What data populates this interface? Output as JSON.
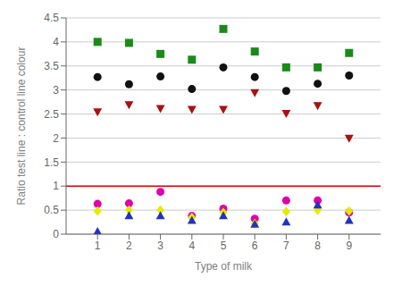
{
  "chart_data": {
    "type": "scatter",
    "xlabel": "Type of milk",
    "ylabel": "Ratio test line : control line colour",
    "x": [
      1,
      2,
      3,
      4,
      5,
      6,
      7,
      8,
      9
    ],
    "series": [
      {
        "color": "#1a8a1a",
        "marker": "square",
        "values": [
          4.0,
          3.98,
          3.75,
          3.63,
          4.27,
          3.8,
          3.47,
          3.47,
          3.77
        ]
      },
      {
        "color": "#111111",
        "marker": "circle",
        "values": [
          3.27,
          3.12,
          3.28,
          3.02,
          3.47,
          3.27,
          2.98,
          3.13,
          3.3
        ]
      },
      {
        "color": "#aa1111",
        "marker": "triangle-down",
        "values": [
          2.55,
          2.7,
          2.62,
          2.6,
          2.6,
          2.95,
          2.52,
          2.68,
          2.0
        ]
      },
      {
        "color": "#dd00aa",
        "marker": "circle",
        "values": [
          0.63,
          0.64,
          0.88,
          0.38,
          0.53,
          0.32,
          0.7,
          0.7,
          0.45
        ]
      },
      {
        "color": "#e8e800",
        "marker": "diamond",
        "values": [
          0.48,
          0.5,
          0.5,
          0.35,
          0.45,
          0.22,
          0.47,
          0.5,
          0.48
        ]
      },
      {
        "color": "#2233bb",
        "marker": "triangle-up",
        "values": [
          0.05,
          0.38,
          0.38,
          0.28,
          0.38,
          0.2,
          0.25,
          0.6,
          0.28
        ]
      }
    ],
    "hlines": [
      {
        "y": 1.0,
        "color": "#dd0000"
      }
    ],
    "xlim": [
      0,
      10
    ],
    "xticks": [
      1,
      2,
      3,
      4,
      5,
      6,
      7,
      8,
      9
    ],
    "ylim": [
      0.0,
      4.5
    ],
    "yticks": [
      0.0,
      0.5,
      1.0,
      1.5,
      2.0,
      2.5,
      3.0,
      3.5,
      4.0,
      4.5
    ],
    "grid": "y"
  }
}
